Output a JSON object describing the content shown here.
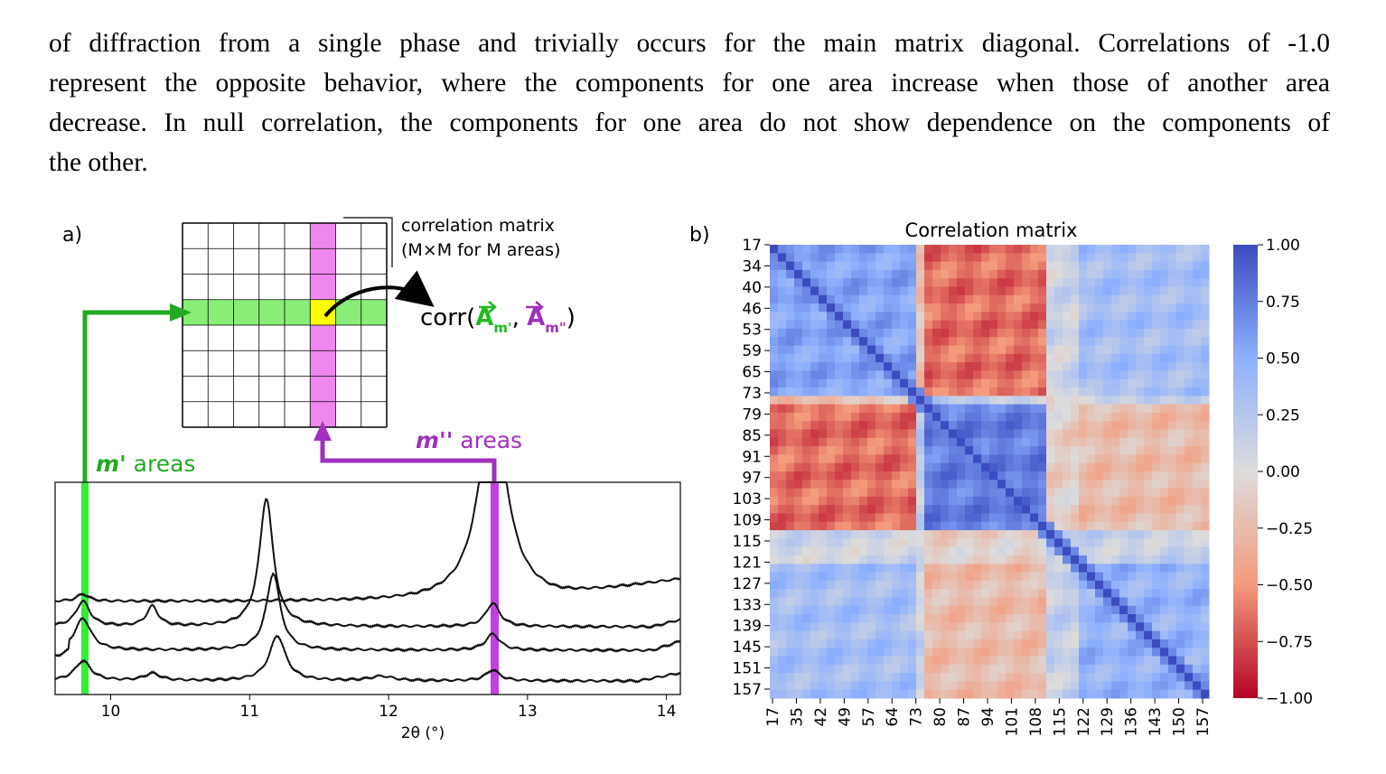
{
  "paragraph": {
    "lines": [
      "of diffraction from a single phase and trivially occurs for the main matrix diagonal. Correlations of -1.0",
      "represent the opposite behavior, where the components for one area increase when those of another area",
      "decrease. In null correlation, the components for one area do not show dependence on the components of",
      "the other."
    ]
  },
  "panel_a": {
    "label": "a)",
    "matrix_label_line1": "correlation matrix",
    "matrix_label_line2": "(M×M for M areas)",
    "corr_prefix": "corr(",
    "corr_a1": "A",
    "corr_sub1": "m'",
    "corr_sep": ", ",
    "corr_a2": "A",
    "corr_sub2": "m\"",
    "corr_suffix": ")",
    "m_prime_sym": "m'",
    "m_prime_text": " areas",
    "m_dprime_sym": "m''",
    "m_dprime_text": " areas",
    "x_ticks": [
      "10",
      "11",
      "12",
      "13",
      "14"
    ],
    "x_label": "2θ (°)",
    "colors": {
      "green": "#22bb22",
      "purple": "#a030c0",
      "green_fill": "#88ee77",
      "purple_fill": "#ee88ee",
      "yellow": "#ffff00"
    }
  },
  "panel_b": {
    "label": "b)",
    "title": "Correlation matrix",
    "y_ticks": [
      "17",
      "34",
      "40",
      "46",
      "53",
      "59",
      "65",
      "73",
      "79",
      "85",
      "91",
      "97",
      "103",
      "109",
      "115",
      "121",
      "127",
      "133",
      "139",
      "145",
      "151",
      "157"
    ],
    "x_ticks": [
      "17",
      "35",
      "42",
      "49",
      "57",
      "64",
      "73",
      "80",
      "87",
      "94",
      "101",
      "108",
      "115",
      "122",
      "129",
      "136",
      "143",
      "150",
      "157"
    ],
    "colorbar_ticks": [
      "1.00",
      "0.75",
      "0.50",
      "0.25",
      "0.00",
      "−0.25",
      "−0.50",
      "−0.75",
      "−1.00"
    ],
    "colormap": "coolwarm (blue = 1.00, red = −1.00)"
  }
}
